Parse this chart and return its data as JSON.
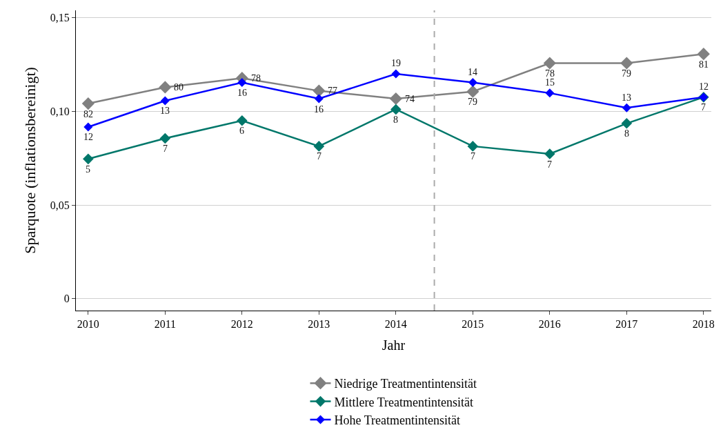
{
  "chart_data": {
    "type": "line",
    "xlabel": "Jahr",
    "ylabel": "Sparquote (inflationsbereinigt)",
    "x": [
      2010,
      2011,
      2012,
      2013,
      2014,
      2015,
      2016,
      2017,
      2018
    ],
    "series": [
      {
        "name": "Niedrige Treatmentintensität",
        "color": "#808080",
        "values": [
          0.1042,
          0.1129,
          0.1178,
          0.111,
          0.1068,
          0.1106,
          0.1258,
          0.1258,
          0.1307
        ]
      },
      {
        "name": "Mittlere Treatmentintensität",
        "color": "#00776a",
        "values": [
          0.0746,
          0.0856,
          0.0951,
          0.0814,
          0.1011,
          0.0814,
          0.0773,
          0.0936,
          0.1076
        ]
      },
      {
        "name": "Hohe Treatmentintensität",
        "color": "#0000ff",
        "values": [
          0.0917,
          0.1057,
          0.1155,
          0.1068,
          0.1201,
          0.1155,
          0.1098,
          0.1019,
          0.1076
        ]
      }
    ],
    "annotations": [
      {
        "text": "82",
        "x": 2010,
        "y": 0.1042
      },
      {
        "text": "80",
        "x": 2011,
        "y": 0.1129
      },
      {
        "text": "78",
        "x": 2012,
        "y": 0.1178
      },
      {
        "text": "77",
        "x": 2013,
        "y": 0.111
      },
      {
        "text": "74",
        "x": 2014,
        "y": 0.1068
      },
      {
        "text": "79",
        "x": 2015,
        "y": 0.1106
      },
      {
        "text": "78",
        "x": 2016,
        "y": 0.1258
      },
      {
        "text": "79",
        "x": 2017,
        "y": 0.1258
      },
      {
        "text": "81",
        "x": 2018,
        "y": 0.1307
      },
      {
        "text": "5",
        "x": 2010,
        "y": 0.0746
      },
      {
        "text": "7",
        "x": 2011,
        "y": 0.0856
      },
      {
        "text": "6",
        "x": 2012,
        "y": 0.0951
      },
      {
        "text": "7",
        "x": 2013,
        "y": 0.0814
      },
      {
        "text": "8",
        "x": 2014,
        "y": 0.1011
      },
      {
        "text": "7",
        "x": 2015,
        "y": 0.0814
      },
      {
        "text": "7",
        "x": 2016,
        "y": 0.0773
      },
      {
        "text": "8",
        "x": 2017,
        "y": 0.0936
      },
      {
        "text": "7",
        "x": 2018,
        "y": 0.1076
      },
      {
        "text": "12",
        "x": 2010,
        "y": 0.0917
      },
      {
        "text": "13",
        "x": 2011,
        "y": 0.1057
      },
      {
        "text": "16",
        "x": 2012,
        "y": 0.1155
      },
      {
        "text": "16",
        "x": 2013,
        "y": 0.1068
      },
      {
        "text": "19",
        "x": 2014,
        "y": 0.1201
      },
      {
        "text": "14",
        "x": 2015,
        "y": 0.1155
      },
      {
        "text": "15",
        "x": 2016,
        "y": 0.1098
      },
      {
        "text": "13",
        "x": 2017,
        "y": 0.1019
      },
      {
        "text": "12",
        "x": 2018,
        "y": 0.1076
      }
    ],
    "xlim": [
      2009.84,
      2018.1
    ],
    "ylim": [
      -0.0064,
      0.154
    ],
    "xticks": [
      2010,
      2011,
      2012,
      2013,
      2014,
      2015,
      2016,
      2017,
      2018
    ],
    "yticks": [
      {
        "value": 0,
        "label": "0"
      },
      {
        "value": 0.05,
        "label": "0,05"
      },
      {
        "value": 0.1,
        "label": "0,10"
      },
      {
        "value": 0.15,
        "label": "0,15"
      }
    ],
    "ref_lines": [
      {
        "axis": "x",
        "value": 2014.5,
        "color": "#aaaaaa",
        "line_style": "dashed"
      }
    ],
    "grid": "y",
    "legend": "bottom",
    "marker": "diamond",
    "line_style": "solid"
  }
}
